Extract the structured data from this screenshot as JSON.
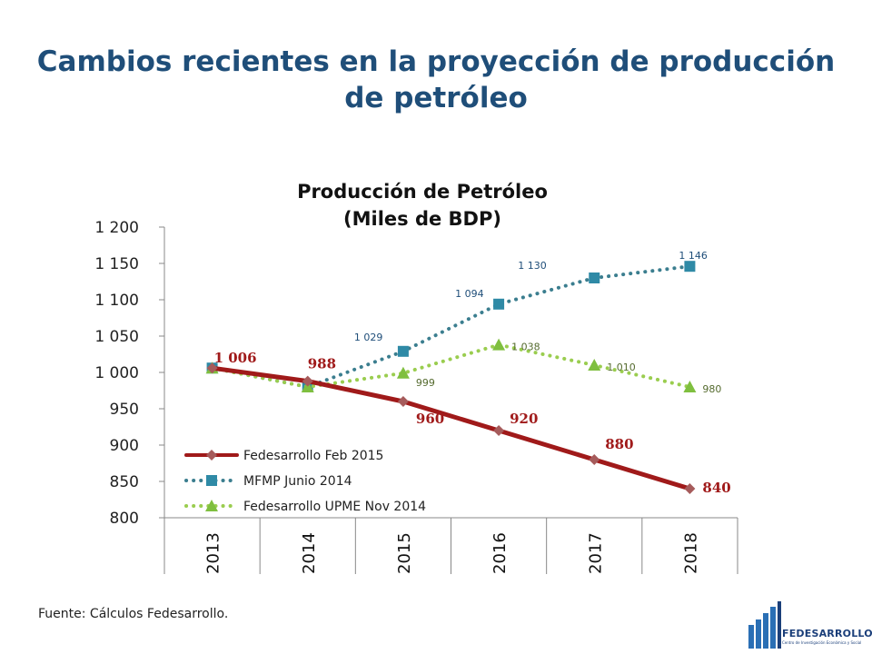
{
  "slide": {
    "title": "Cambios recientes en la proyección de producción de petróleo",
    "source": "Fuente: Cálculos Fedesarrollo."
  },
  "logo": {
    "name": "FEDESARROLLO",
    "subtitle": "Centro de Investigación Económica y Social"
  },
  "chart_data": {
    "type": "line",
    "title": "Producción de Petróleo (Miles de BDP)",
    "title_lines": [
      "Producción de Petróleo",
      "(Miles de BDP)"
    ],
    "xlabel": "",
    "ylabel": "",
    "categories": [
      "2013",
      "2014",
      "2015",
      "2016",
      "2017",
      "2018"
    ],
    "ylim": [
      800,
      1200
    ],
    "yticks": [
      800,
      850,
      900,
      950,
      1000,
      1050,
      1100,
      1150,
      1200
    ],
    "ytick_labels": [
      "800",
      "850",
      "900",
      "950",
      "1 000",
      "1 050",
      "1 100",
      "1 150",
      "1 200"
    ],
    "grid": false,
    "legend_position": "bottom-left",
    "series": [
      {
        "name": "Fedesarrollo Feb 2015",
        "values": [
          1006,
          988,
          960,
          920,
          880,
          840
        ],
        "labels": [
          "1 006",
          "988",
          "960",
          "920",
          "880",
          "840"
        ],
        "color": "#a01a1a",
        "marker_color": "#a65b5b",
        "marker": "diamond",
        "line": "solid"
      },
      {
        "name": "MFMP Junio 2014",
        "values": [
          1006,
          980,
          1029,
          1094,
          1130,
          1146
        ],
        "labels": [
          "",
          "",
          "1 029",
          "1 094",
          "1 130",
          "1 146"
        ],
        "color": "#3b7e8f",
        "marker_color": "#2f8aa6",
        "marker": "square",
        "line": "dotted"
      },
      {
        "name": "Fedesarrollo UPME Nov 2014",
        "values": [
          1006,
          980,
          999,
          1038,
          1010,
          980
        ],
        "labels": [
          "",
          "",
          "999",
          "1 038",
          "1 010",
          "980"
        ],
        "color": "#9acd4f",
        "marker_color": "#7fbf3f",
        "marker": "triangle",
        "line": "dotted"
      }
    ]
  }
}
